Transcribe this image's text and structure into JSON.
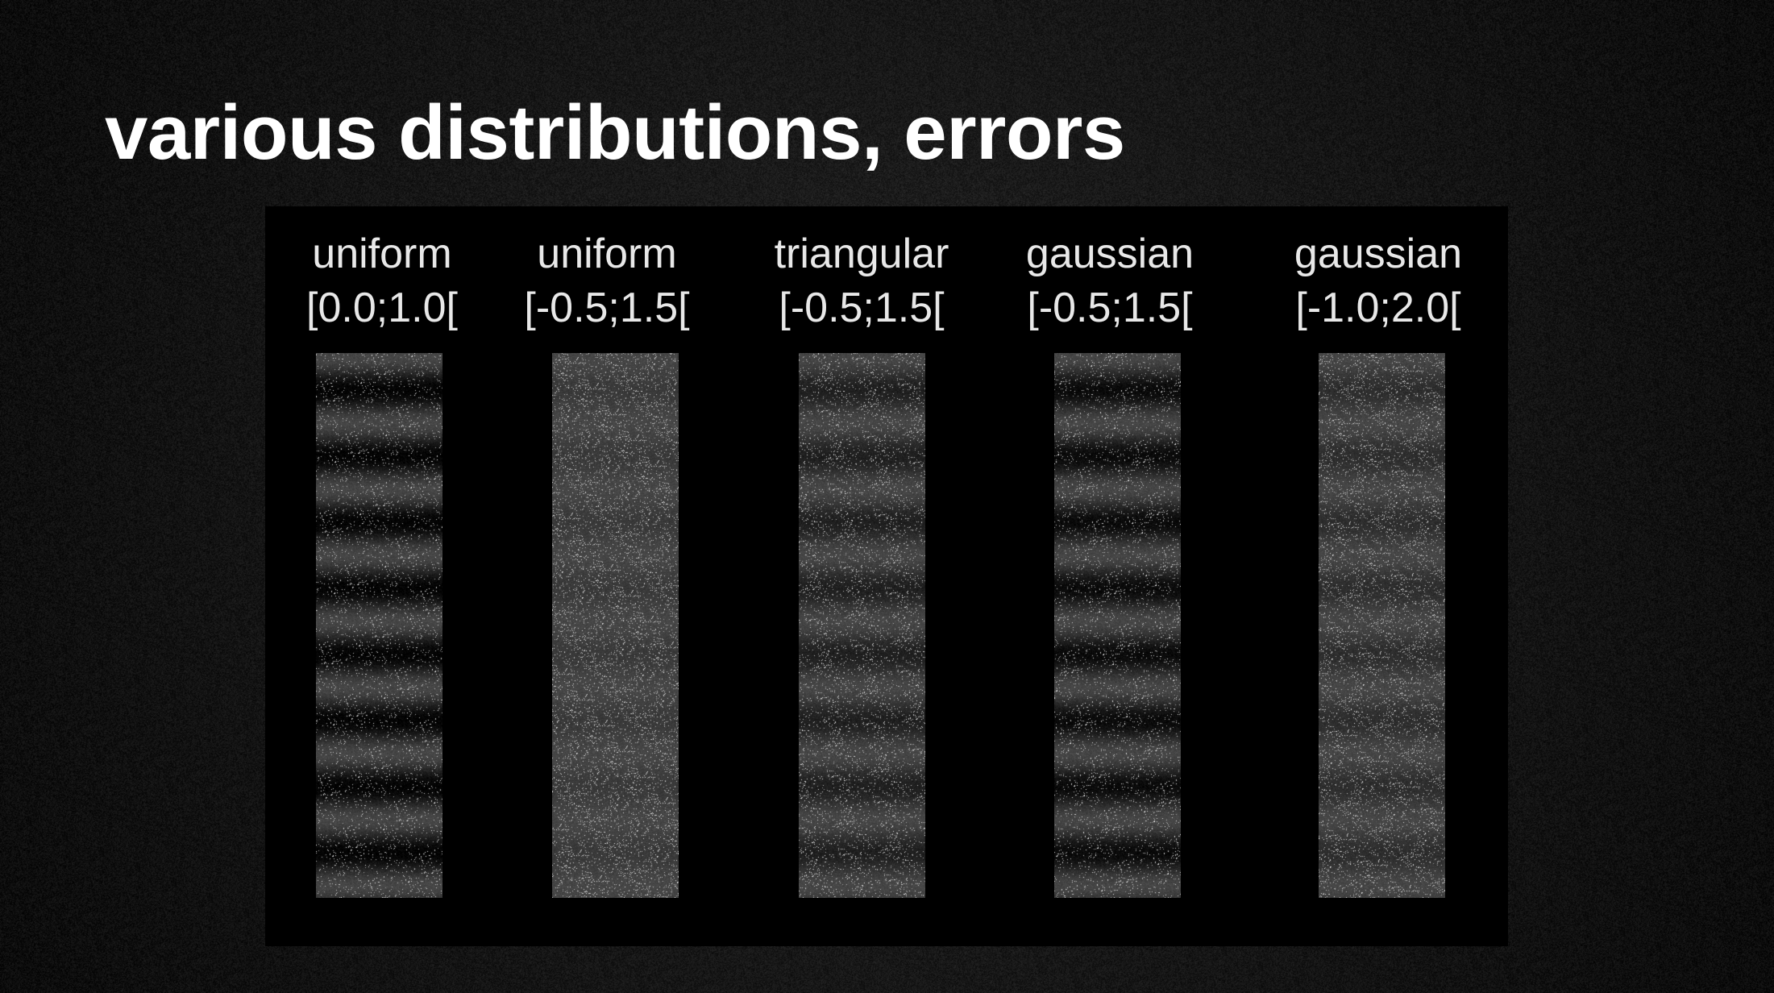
{
  "slide": {
    "title": "various distributions, errors"
  },
  "figure": {
    "columns": [
      {
        "distribution": "uniform",
        "range": "[0.0;1.0[",
        "banding": 0.95
      },
      {
        "distribution": "uniform",
        "range": "[-0.5;1.5[",
        "banding": 0.18
      },
      {
        "distribution": "triangular",
        "range": "[-0.5;1.5[",
        "banding": 0.55
      },
      {
        "distribution": "gaussian",
        "range": "[-0.5;1.5[",
        "banding": 0.85
      },
      {
        "distribution": "gaussian",
        "range": "[-1.0;2.0[",
        "banding": 0.35
      }
    ]
  },
  "colors": {
    "background": "#161616",
    "panel": "#000000",
    "title": "#ffffff",
    "label": "#e8e8e8",
    "strip_base": "#4a4a4a",
    "noise_dot": "#b0b0b0"
  }
}
